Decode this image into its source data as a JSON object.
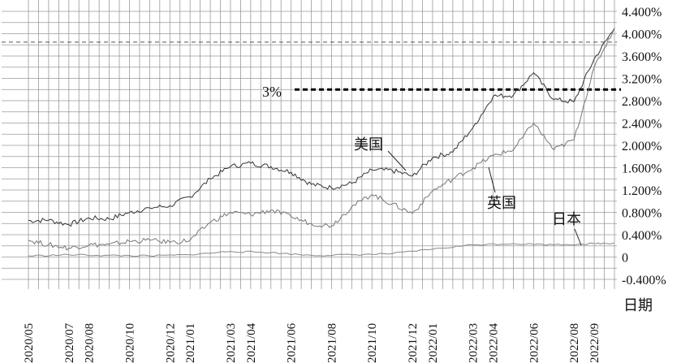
{
  "chart_data": {
    "type": "line",
    "title": "",
    "xlabel": "日期",
    "ylabel": "",
    "ylim": [
      -0.4,
      4.4
    ],
    "grid": true,
    "yticks": [
      "4.400%",
      "4.000%",
      "3.600%",
      "3.200%",
      "2.800%",
      "2.400%",
      "2.000%",
      "1.600%",
      "1.200%",
      "0.800%",
      "0.400%",
      "0",
      "-0.400%"
    ],
    "xticks": [
      "2020/05",
      "2020/07",
      "2020/08",
      "2020/10",
      "2020/12",
      "2021/01",
      "2021/03",
      "2021/04",
      "2021/06",
      "2021/08",
      "2021/10",
      "2021/12",
      "2022/01",
      "2022/03",
      "2022/04",
      "2022/06",
      "2022/08",
      "2022/09"
    ],
    "series": [
      {
        "name": "美国",
        "x": [
          "2020/05",
          "2020/06",
          "2020/07",
          "2020/08",
          "2020/09",
          "2020/10",
          "2020/11",
          "2020/12",
          "2021/01",
          "2021/02",
          "2021/03",
          "2021/04",
          "2021/05",
          "2021/06",
          "2021/07",
          "2021/08",
          "2021/09",
          "2021/10",
          "2021/11",
          "2021/12",
          "2022/01",
          "2022/02",
          "2022/03",
          "2022/04",
          "2022/05",
          "2022/06",
          "2022/07",
          "2022/08",
          "2022/09",
          "2022/10"
        ],
        "values": [
          0.65,
          0.66,
          0.58,
          0.7,
          0.68,
          0.8,
          0.88,
          0.92,
          1.08,
          1.4,
          1.62,
          1.68,
          1.62,
          1.52,
          1.3,
          1.24,
          1.32,
          1.56,
          1.55,
          1.45,
          1.78,
          1.88,
          2.32,
          2.88,
          2.9,
          3.3,
          2.82,
          2.78,
          3.55,
          4.1
        ]
      },
      {
        "name": "英国",
        "x": [
          "2020/05",
          "2020/06",
          "2020/07",
          "2020/08",
          "2020/09",
          "2020/10",
          "2020/11",
          "2020/12",
          "2021/01",
          "2021/02",
          "2021/03",
          "2021/04",
          "2021/05",
          "2021/06",
          "2021/07",
          "2021/08",
          "2021/09",
          "2021/10",
          "2021/11",
          "2021/12",
          "2022/01",
          "2022/02",
          "2022/03",
          "2022/04",
          "2022/05",
          "2022/06",
          "2022/07",
          "2022/08",
          "2022/09",
          "2022/10"
        ],
        "values": [
          0.3,
          0.22,
          0.16,
          0.22,
          0.22,
          0.28,
          0.3,
          0.26,
          0.3,
          0.62,
          0.8,
          0.76,
          0.84,
          0.72,
          0.6,
          0.56,
          0.9,
          1.12,
          0.95,
          0.78,
          1.18,
          1.4,
          1.6,
          1.82,
          1.92,
          2.4,
          1.92,
          2.1,
          3.4,
          4.1
        ]
      },
      {
        "name": "日本",
        "x": [
          "2020/05",
          "2020/07",
          "2020/09",
          "2020/11",
          "2021/01",
          "2021/03",
          "2021/05",
          "2021/07",
          "2021/09",
          "2021/11",
          "2022/01",
          "2022/03",
          "2022/05",
          "2022/07",
          "2022/09",
          "2022/10"
        ],
        "values": [
          0.02,
          0.04,
          0.03,
          0.02,
          0.04,
          0.1,
          0.08,
          0.03,
          0.04,
          0.06,
          0.14,
          0.22,
          0.24,
          0.22,
          0.24,
          0.25
        ]
      }
    ],
    "reference_lines": [
      {
        "label": "3%",
        "y": 3.0,
        "style": "dashed"
      },
      {
        "label": "",
        "y": 3.85,
        "style": "dashed"
      }
    ],
    "annotations": [
      "美国",
      "英国",
      "日本",
      "3%"
    ]
  }
}
